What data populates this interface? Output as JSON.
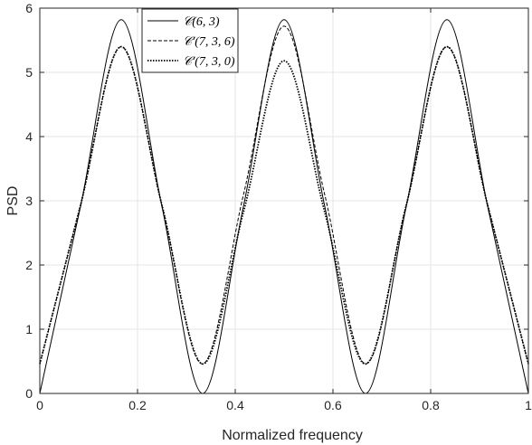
{
  "chart_data": {
    "type": "line",
    "xlabel": "Normalized frequency",
    "ylabel": "PSD",
    "xlim": [
      0,
      1
    ],
    "ylim": [
      0,
      6
    ],
    "grid": true,
    "legend_position": "top-left",
    "x_ticks": [
      "0",
      "0.2",
      "0.4",
      "0.6",
      "0.8",
      "1"
    ],
    "y_ticks": [
      "0",
      "1",
      "2",
      "3",
      "4",
      "5",
      "6"
    ],
    "series": [
      {
        "name": "𝒞(6, 3)",
        "style": "solid",
        "color": "#000000",
        "x": [
          0.0,
          0.0833,
          0.1667,
          0.25,
          0.3333,
          0.4167,
          0.5,
          0.5833,
          0.6667,
          0.75,
          0.8333,
          0.9167,
          1.0
        ],
        "y": [
          0.0,
          2.91,
          5.82,
          2.91,
          0.0,
          2.91,
          5.82,
          2.91,
          0.0,
          2.91,
          5.82,
          2.91,
          0.0
        ]
      },
      {
        "name": "𝒞′(7, 3, 6)",
        "style": "dashed",
        "color": "#000000",
        "x": [
          0.0,
          0.0833,
          0.1667,
          0.25,
          0.3333,
          0.4167,
          0.5,
          0.5833,
          0.6667,
          0.75,
          0.8333,
          0.9167,
          1.0
        ],
        "y": [
          0.46,
          2.93,
          5.4,
          2.93,
          0.46,
          3.09,
          5.72,
          3.09,
          0.46,
          2.93,
          5.4,
          2.93,
          0.46
        ]
      },
      {
        "name": "𝒞′(7, 3, 0)",
        "style": "dotted",
        "color": "#000000",
        "x": [
          0.0,
          0.0833,
          0.1667,
          0.25,
          0.3333,
          0.4167,
          0.5,
          0.5833,
          0.6667,
          0.75,
          0.8333,
          0.9167,
          1.0
        ],
        "y": [
          0.46,
          2.93,
          5.4,
          2.93,
          0.46,
          2.82,
          5.18,
          2.82,
          0.46,
          2.93,
          5.4,
          2.93,
          0.46
        ]
      }
    ]
  }
}
